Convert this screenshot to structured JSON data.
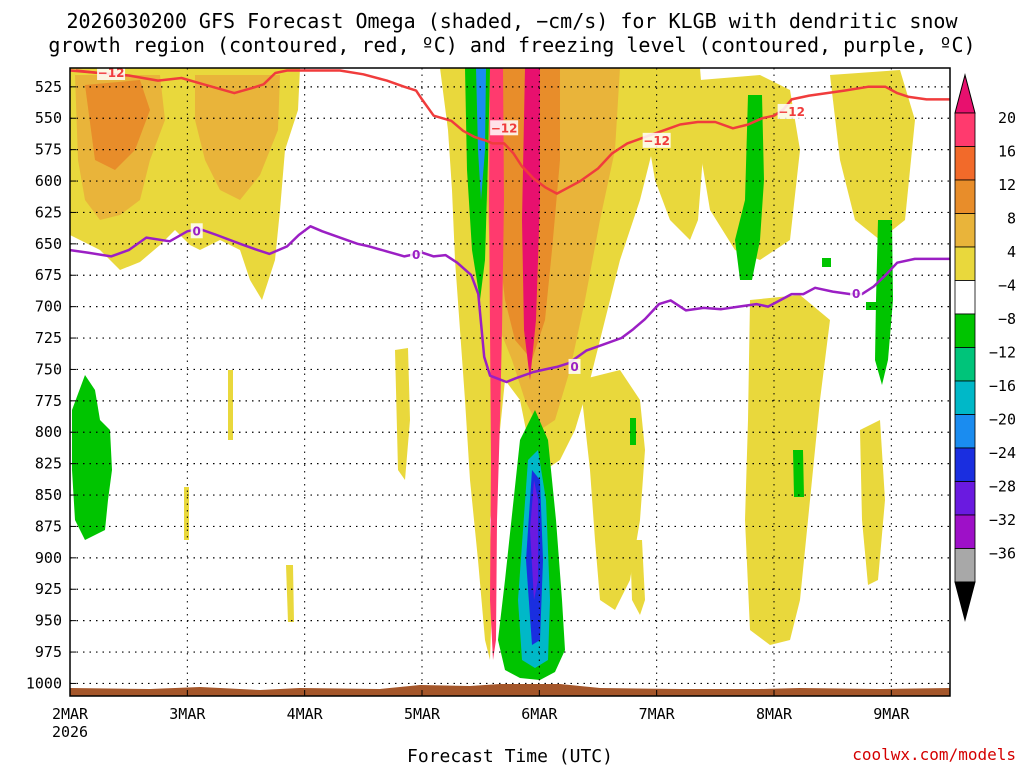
{
  "chart_data": {
    "type": "heatmap",
    "title_line1": "2026030200 GFS Forecast Omega (shaded, −cm/s) for KLGB with dendritic snow",
    "title_line2": "growth region (contoured, red, ºC) and freezing level (contoured, purple, ºC)",
    "xlabel": "Forecast Time (UTC)",
    "ylabel": "",
    "credit": "coolwx.com/models",
    "x_tick_labels": [
      "2MAR",
      "3MAR",
      "4MAR",
      "5MAR",
      "6MAR",
      "7MAR",
      "8MAR",
      "9MAR"
    ],
    "x_year_label": "2026",
    "x_range_days": [
      0,
      7.5
    ],
    "y_tick_labels": [
      "525",
      "550",
      "575",
      "600",
      "625",
      "650",
      "675",
      "700",
      "725",
      "750",
      "775",
      "800",
      "825",
      "850",
      "875",
      "900",
      "925",
      "950",
      "975",
      "1000"
    ],
    "y_range_hpa": [
      1010,
      510
    ],
    "colorbar": {
      "labels": [
        "20",
        "16",
        "12",
        "8",
        "4",
        "−4",
        "−8",
        "−12",
        "−16",
        "−20",
        "−24",
        "−28",
        "−32",
        "−36"
      ],
      "colors": [
        "#ff3a6e",
        "#f26a2a",
        "#e88d2a",
        "#e9b43a",
        "#e9d83c",
        "#ffffff",
        "#00c400",
        "#00c47a",
        "#00b8c8",
        "#1a8cf0",
        "#1a2ee0",
        "#6a1ae0",
        "#9e10c8",
        "#a8a8a8"
      ],
      "top_arrow_color": "#e8106e",
      "bottom_arrow_color": "#000000"
    },
    "series": [
      {
        "name": "freezing level (0 ºC)",
        "color": "#9b1fc4",
        "label": "0",
        "points": [
          [
            0.0,
            655
          ],
          [
            0.15,
            657
          ],
          [
            0.35,
            660
          ],
          [
            0.5,
            655
          ],
          [
            0.65,
            645
          ],
          [
            0.85,
            648
          ],
          [
            1.0,
            640
          ],
          [
            1.1,
            638
          ],
          [
            1.25,
            643
          ],
          [
            1.45,
            650
          ],
          [
            1.6,
            655
          ],
          [
            1.7,
            658
          ],
          [
            1.85,
            652
          ],
          [
            1.95,
            643
          ],
          [
            2.05,
            636
          ],
          [
            2.15,
            640
          ],
          [
            2.3,
            645
          ],
          [
            2.45,
            650
          ],
          [
            2.55,
            652
          ],
          [
            2.7,
            656
          ],
          [
            2.85,
            660
          ],
          [
            3.0,
            657
          ],
          [
            3.1,
            660
          ],
          [
            3.2,
            659
          ],
          [
            3.3,
            665
          ],
          [
            3.42,
            675
          ],
          [
            3.48,
            690
          ],
          [
            3.53,
            740
          ],
          [
            3.58,
            755
          ],
          [
            3.72,
            760
          ],
          [
            3.8,
            757
          ],
          [
            3.95,
            752
          ],
          [
            4.05,
            750
          ],
          [
            4.15,
            748
          ],
          [
            4.25,
            745
          ],
          [
            4.4,
            735
          ],
          [
            4.55,
            730
          ],
          [
            4.7,
            725
          ],
          [
            4.8,
            718
          ],
          [
            4.9,
            710
          ],
          [
            5.02,
            698
          ],
          [
            5.12,
            695
          ],
          [
            5.25,
            703
          ],
          [
            5.4,
            701
          ],
          [
            5.55,
            702
          ],
          [
            5.7,
            700
          ],
          [
            5.85,
            698
          ],
          [
            5.95,
            700
          ],
          [
            6.05,
            695
          ],
          [
            6.15,
            690
          ],
          [
            6.25,
            690
          ],
          [
            6.35,
            685
          ],
          [
            6.5,
            688
          ],
          [
            6.65,
            690
          ],
          [
            6.75,
            690
          ],
          [
            6.85,
            684
          ],
          [
            6.95,
            675
          ],
          [
            7.05,
            665
          ],
          [
            7.2,
            662
          ],
          [
            7.5,
            662
          ]
        ],
        "label_positions": [
          [
            1.08,
            640
          ],
          [
            2.95,
            659
          ],
          [
            4.3,
            748
          ],
          [
            6.7,
            690
          ]
        ]
      },
      {
        "name": "dendritic snow growth region (−12 ºC)",
        "color": "#f03c3c",
        "label": "−12",
        "points": [
          [
            0.0,
            512
          ],
          [
            0.25,
            514
          ],
          [
            0.5,
            516
          ],
          [
            0.75,
            520
          ],
          [
            0.95,
            518
          ],
          [
            1.1,
            522
          ],
          [
            1.25,
            526
          ],
          [
            1.4,
            530
          ],
          [
            1.55,
            526
          ],
          [
            1.65,
            523
          ],
          [
            1.75,
            514
          ],
          [
            1.85,
            512
          ],
          [
            2.3,
            512
          ],
          [
            2.5,
            515
          ],
          [
            2.7,
            520
          ],
          [
            2.85,
            525
          ],
          [
            2.95,
            528
          ],
          [
            3.0,
            535
          ],
          [
            3.1,
            548
          ],
          [
            3.25,
            552
          ],
          [
            3.35,
            560
          ],
          [
            3.45,
            565
          ],
          [
            3.55,
            568
          ],
          [
            3.6,
            570
          ],
          [
            3.7,
            570
          ],
          [
            3.78,
            578
          ],
          [
            3.85,
            588
          ],
          [
            3.95,
            598
          ],
          [
            4.05,
            605
          ],
          [
            4.15,
            610
          ],
          [
            4.25,
            605
          ],
          [
            4.35,
            600
          ],
          [
            4.5,
            590
          ],
          [
            4.62,
            578
          ],
          [
            4.75,
            570
          ],
          [
            4.9,
            565
          ],
          [
            5.05,
            560
          ],
          [
            5.2,
            555
          ],
          [
            5.35,
            553
          ],
          [
            5.5,
            553
          ],
          [
            5.65,
            558
          ],
          [
            5.78,
            555
          ],
          [
            5.9,
            550
          ],
          [
            6.0,
            548
          ],
          [
            6.08,
            543
          ],
          [
            6.15,
            535
          ],
          [
            6.3,
            532
          ],
          [
            6.45,
            530
          ],
          [
            6.6,
            528
          ],
          [
            6.8,
            525
          ],
          [
            6.95,
            525
          ],
          [
            7.05,
            530
          ],
          [
            7.15,
            533
          ],
          [
            7.3,
            535
          ],
          [
            7.5,
            535
          ]
        ],
        "extra_segment": [
          [
            0.05,
            512
          ],
          [
            0.15,
            513
          ],
          [
            0.25,
            514
          ]
        ],
        "label_positions": [
          [
            0.35,
            514
          ],
          [
            3.7,
            558
          ],
          [
            5.0,
            568
          ],
          [
            6.15,
            545
          ]
        ]
      }
    ],
    "omega_regions_description": "shaded omega field (−cm/s)"
  }
}
